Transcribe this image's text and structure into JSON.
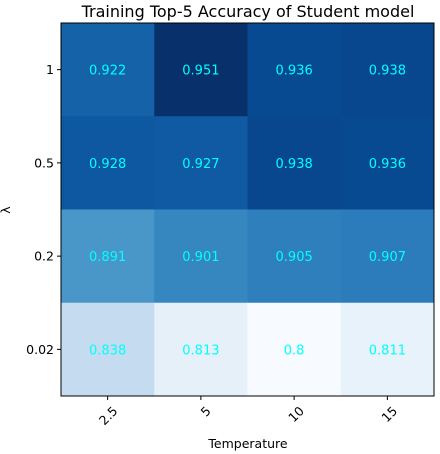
{
  "chart_data": {
    "type": "heatmap",
    "title": "Training Top-5 Accuracy of Student model",
    "xlabel": "Temperature",
    "ylabel": "λ",
    "x_categories": [
      "2.5",
      "5",
      "10",
      "15"
    ],
    "y_categories": [
      "1",
      "0.5",
      "0.2",
      "0.02"
    ],
    "values": [
      [
        0.922,
        0.951,
        0.936,
        0.938
      ],
      [
        0.928,
        0.927,
        0.938,
        0.936
      ],
      [
        0.891,
        0.901,
        0.905,
        0.907
      ],
      [
        0.838,
        0.813,
        0.8,
        0.811
      ]
    ],
    "value_labels": [
      [
        "0.922",
        "0.951",
        "0.936",
        "0.938"
      ],
      [
        "0.928",
        "0.927",
        "0.938",
        "0.936"
      ],
      [
        "0.891",
        "0.901",
        "0.905",
        "0.907"
      ],
      [
        "0.838",
        "0.813",
        "0.8",
        "0.811"
      ]
    ],
    "colormap": "Blues",
    "value_range": [
      0.8,
      0.951
    ],
    "label_color": "#00ffff",
    "x_tick_rotation": "45 degrees",
    "grid": false,
    "legend": "none"
  }
}
